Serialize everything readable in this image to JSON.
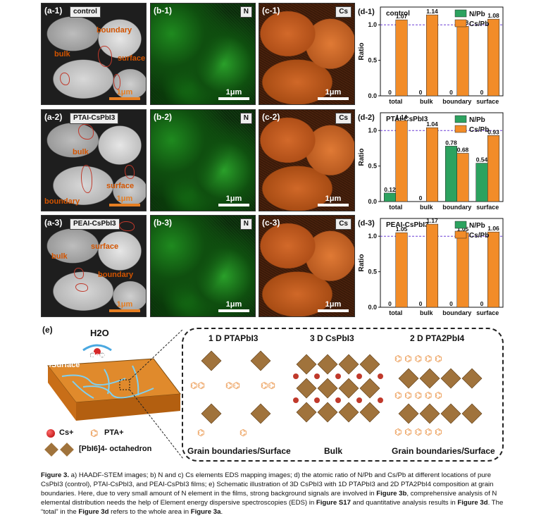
{
  "panels": {
    "row1": {
      "a": "(a-1)",
      "a_tag": "control",
      "b": "(b-1)",
      "c": "(c-1)"
    },
    "row2": {
      "a": "(a-2)",
      "a_tag": "PTAI-CsPbI3",
      "b": "(b-2)",
      "c": "(c-2)"
    },
    "row3": {
      "a": "(a-3)",
      "a_tag": "PEAI-CsPbI3",
      "b": "(b-3)",
      "c": "(c-3)"
    },
    "n_tag": "N",
    "cs_tag": "Cs",
    "scale": "1μm",
    "ann_bulk": "bulk",
    "ann_boundary": "boundary",
    "ann_surface": "surface"
  },
  "chart_data": [
    {
      "type": "bar",
      "panel": "(d-1)",
      "title": "control",
      "categories": [
        "total",
        "bulk",
        "boundary",
        "surface"
      ],
      "series": [
        {
          "name": "N/Pb",
          "values": [
            0,
            0,
            0,
            0
          ]
        },
        {
          "name": "Cs/Pb",
          "values": [
            1.07,
            1.14,
            0.98,
            1.08
          ]
        }
      ],
      "ylabel": "Ratio",
      "yticks": [
        "0.0",
        "0.5",
        "1.0"
      ],
      "ylim": [
        0,
        1.25
      ],
      "reference_line": 1.0,
      "colors": {
        "N/Pb": "#2ca25f",
        "Cs/Pb": "#f28c28"
      },
      "legend": "top-right"
    },
    {
      "type": "bar",
      "panel": "(d-2)",
      "title": "PTAI-CsPbI3",
      "categories": [
        "total",
        "bulk",
        "boundary",
        "surface"
      ],
      "series": [
        {
          "name": "N/Pb",
          "values": [
            0.12,
            0,
            0.78,
            0.54
          ]
        },
        {
          "name": "Cs/Pb",
          "values": [
            1.14,
            1.04,
            0.68,
            0.93
          ]
        }
      ],
      "ylabel": "Ratio",
      "yticks": [
        "0.0",
        "0.5",
        "1.0"
      ],
      "ylim": [
        0,
        1.25
      ],
      "reference_line": 1.0,
      "colors": {
        "N/Pb": "#2ca25f",
        "Cs/Pb": "#f28c28"
      },
      "legend": "top-right"
    },
    {
      "type": "bar",
      "panel": "(d-3)",
      "title": "PEAI-CsPbI3",
      "categories": [
        "total",
        "bulk",
        "boundary",
        "surface"
      ],
      "series": [
        {
          "name": "N/Pb",
          "values": [
            0,
            0,
            0,
            0
          ]
        },
        {
          "name": "Cs/Pb",
          "values": [
            1.05,
            1.17,
            1.05,
            1.06
          ]
        }
      ],
      "ylabel": "Ratio",
      "yticks": [
        "0.0",
        "0.5",
        "1.0"
      ],
      "ylim": [
        0,
        1.25
      ],
      "reference_line": 1.0,
      "colors": {
        "N/Pb": "#2ca25f",
        "Cs/Pb": "#f28c28"
      },
      "legend": "top-right"
    }
  ],
  "schematic": {
    "label": "(e)",
    "h2o": "H2O",
    "film_label_1": "Grain boundaries",
    "film_label_2": "/Surface",
    "col1_title": "1 D PTAPbI3",
    "col2_title": "3 D CsPbI3",
    "col3_title": "2 D PTA2PbI4",
    "col1_bottom": "Grain boundaries/Surface",
    "col2_bottom": "Bulk",
    "col3_bottom": "Grain boundaries/Surface",
    "legend_cs": "Cs+",
    "legend_pta": "PTA+",
    "legend_oct": "[PbI6]4- octahedron"
  },
  "caption": {
    "lead": "Figure 3.",
    "p1": " a) HAADF-STEM images; b) N and c) Cs elements EDS mapping images; d) the atomic ratio of N/Pb and Cs/Pb at different locations of pure CsPbI3 (control), PTAI-CsPbI3, and PEAI-CsPbI3 films; e) Schematic illustration of 3D CsPbI3 with 1D PTAPbI3 and 2D PTA2PbI4 composition at grain boundaries. Here, due to very small amount of N element in the films, strong background signals are involved in ",
    "ref1": "Figure 3b",
    "p2": ", comprehensive analysis of N elemental distribution needs the help of Element energy dispersive spectroscopies (EDS) in ",
    "ref2": "Figure S17",
    "p3": " and quantitative analysis results in ",
    "ref3": "Figure 3d",
    "p4": ". The “total” in the ",
    "ref4": "Figure 3d",
    "p5": " refers to the whole area in ",
    "ref5": "Figure 3a",
    "p6": "."
  }
}
